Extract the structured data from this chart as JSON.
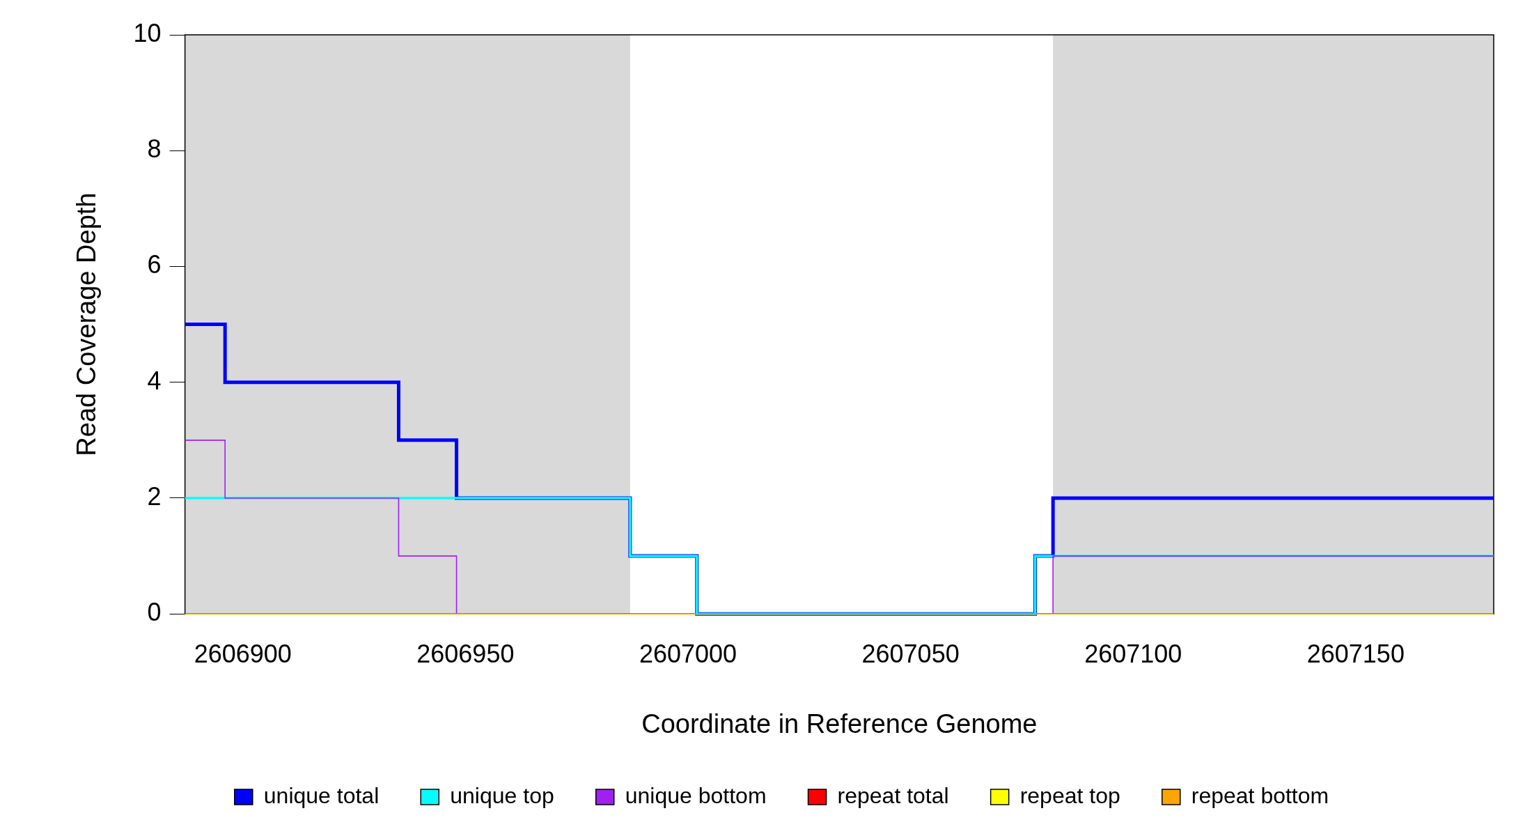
{
  "chart_data": {
    "type": "step",
    "xlabel": "Coordinate in Reference Genome",
    "ylabel": "Read Coverage Depth",
    "xlim": [
      2606887,
      2607181
    ],
    "ylim": [
      0,
      10
    ],
    "xticks": [
      2606900,
      2606950,
      2607000,
      2607050,
      2607100,
      2607150
    ],
    "yticks": [
      0,
      2,
      4,
      6,
      8,
      10
    ],
    "grid": false,
    "legend": "bottom",
    "bands": [
      {
        "axis": "x",
        "from": 2606887,
        "to": 2606987,
        "color": "#d9d9d9"
      },
      {
        "axis": "x",
        "from": 2607082,
        "to": 2607181,
        "color": "#d9d9d9"
      }
    ],
    "series": [
      {
        "name": "unique total",
        "color": "#0000ff",
        "x": [
          2606887,
          2606896,
          2606935,
          2606948,
          2606987,
          2607002,
          2607078,
          2607082,
          2607181
        ],
        "values": [
          5,
          4,
          3,
          2,
          1,
          0,
          1,
          2,
          2
        ]
      },
      {
        "name": "unique top",
        "color": "#00ffff",
        "x": [
          2606887,
          2606987,
          2607002,
          2607078,
          2607181
        ],
        "values": [
          2,
          1,
          0,
          1,
          1
        ]
      },
      {
        "name": "unique bottom",
        "color": "#a020f0",
        "x": [
          2606887,
          2606896,
          2606935,
          2606948,
          2607082,
          2607181
        ],
        "values": [
          3,
          2,
          1,
          0,
          1,
          1
        ]
      },
      {
        "name": "repeat total",
        "color": "#ff0000"
      },
      {
        "name": "repeat top",
        "color": "#ffff00"
      },
      {
        "name": "repeat bottom",
        "color": "#ffa500",
        "x": [
          2606887,
          2607181
        ],
        "values": [
          0,
          0
        ]
      }
    ]
  }
}
